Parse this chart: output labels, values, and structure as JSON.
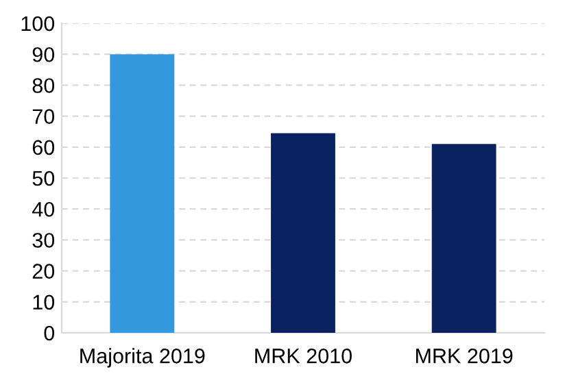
{
  "chart_data": {
    "type": "bar",
    "categories": [
      "Majorita 2019",
      "MRK 2010",
      "MRK 2019"
    ],
    "values": [
      90,
      64.5,
      61
    ],
    "colors": [
      "#3399dd",
      "#0a2260",
      "#0a2260"
    ],
    "ylim": [
      0,
      100
    ],
    "yticks": [
      0,
      10,
      20,
      30,
      40,
      50,
      60,
      70,
      80,
      90,
      100
    ],
    "grid": "y",
    "legend": false
  }
}
